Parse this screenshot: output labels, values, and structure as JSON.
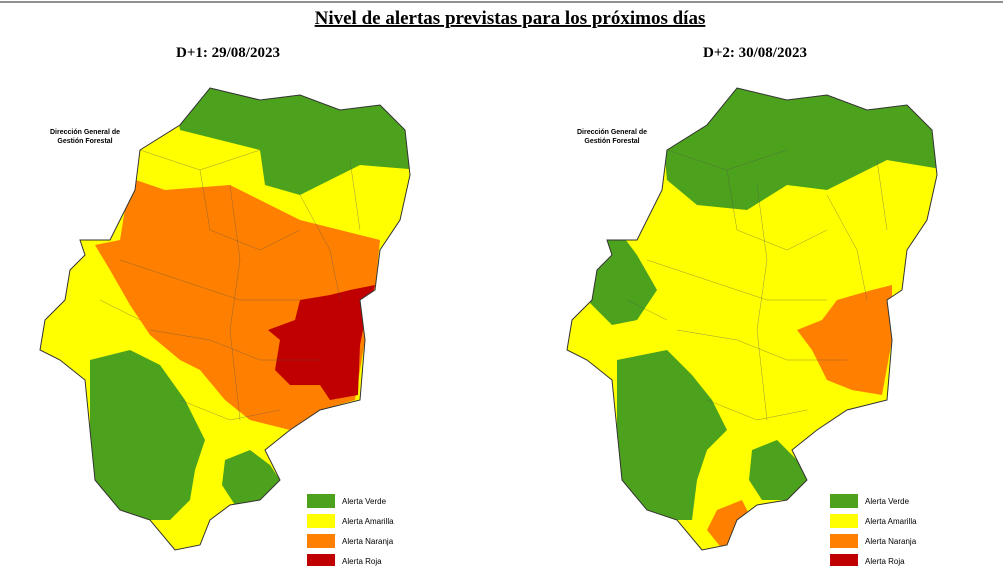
{
  "title": "Nivel de alertas previstas para los próximos días",
  "maps": [
    {
      "heading": "D+1: 29/08/2023",
      "credit": [
        "Dirección General de",
        "Gestión Forestal"
      ],
      "legend": [
        {
          "label": "Alerta Verde",
          "color": "#4ca21c"
        },
        {
          "label": "Alerta Amarilla",
          "color": "#ffff00"
        },
        {
          "label": "Alerta Naranja",
          "color": "#ff7f00"
        },
        {
          "label": "Alerta Roja",
          "color": "#c00000"
        }
      ]
    },
    {
      "heading": "D+2: 30/08/2023",
      "credit": [
        "Dirección General de",
        "Gestión Forestal"
      ],
      "legend": [
        {
          "label": "Alerta Verde",
          "color": "#4ca21c"
        },
        {
          "label": "Alerta Amarilla",
          "color": "#ffff00"
        },
        {
          "label": "Alerta Naranja",
          "color": "#ff7f00"
        },
        {
          "label": "Alerta Roja",
          "color": "#c00000"
        }
      ]
    }
  ]
}
